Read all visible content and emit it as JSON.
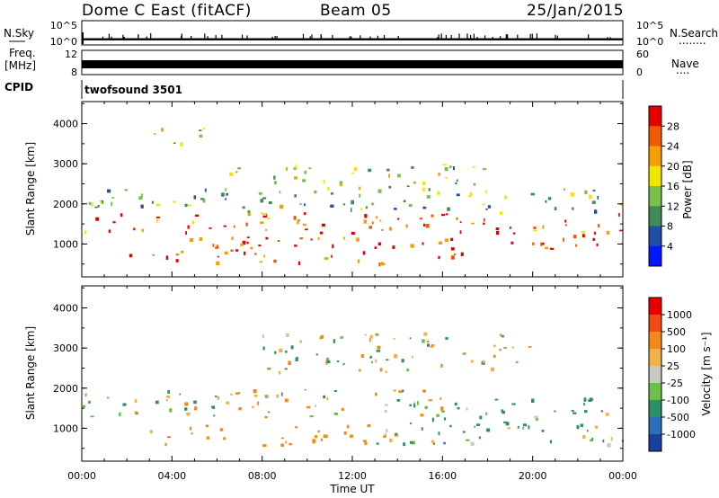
{
  "header": {
    "station": "Dome C East (fitACF)",
    "beam": "Beam 05",
    "date": "25/Jan/2015"
  },
  "nsky_panel": {
    "left_label": "N.Sky",
    "left_ticks": [
      "10^5",
      "10^0"
    ],
    "right_ticks": [
      "10^5",
      "10^0"
    ],
    "right_label": "N.Search",
    "right_label_dots": "........"
  },
  "freq_panel": {
    "left_label_line1": "Freq.",
    "left_label_line2": "[MHz]",
    "left_ticks": [
      "12",
      "8"
    ],
    "right_ticks": [
      "60",
      "0"
    ],
    "right_label": "Nave",
    "right_label_dots": "...."
  },
  "cpid_panel": {
    "label": "CPID",
    "value": "twofsound 3501"
  },
  "axes": {
    "x_ticks": [
      "00:00",
      "04:00",
      "08:00",
      "12:00",
      "16:00",
      "20:00",
      "00:00"
    ],
    "x_label": "Time UT",
    "y_ticks": [
      "1000",
      "2000",
      "3000",
      "4000"
    ],
    "y_label": "Slant Range [km]"
  },
  "power_colorbar": {
    "label": "Power [dB]",
    "ticks": [
      "4",
      "8",
      "12",
      "16",
      "20",
      "24",
      "28"
    ],
    "colors": [
      "#0018ff",
      "#1f4ea6",
      "#3f8c5a",
      "#7bc04a",
      "#f2e600",
      "#f3a000",
      "#f25a00",
      "#e80000"
    ]
  },
  "velocity_colorbar": {
    "label": "Velocity [m s⁻¹]",
    "ticks": [
      "1000",
      "500",
      "100",
      "25",
      "-25",
      "-100",
      "-500",
      "-1000"
    ],
    "colors": [
      "#1a3fa0",
      "#2f6fb8",
      "#2f8f68",
      "#6cc04a",
      "#c9c9c4",
      "#f2b24a",
      "#f28a1a",
      "#f24a10",
      "#e80000"
    ]
  },
  "chart_data": [
    {
      "type": "heatmap",
      "title": "",
      "x": [
        "00:00",
        "04:00",
        "08:00",
        "12:00",
        "16:00",
        "20:00",
        "00:00"
      ],
      "xlabel": "Time UT",
      "ylabel": "Slant Range [km]",
      "ylim": [
        180,
        4550
      ],
      "quantity": "Power [dB]",
      "colorbar_range": [
        0,
        30
      ],
      "grid": false,
      "legend": "right colorbar",
      "echo_bands": [
        {
          "range_km": [
            1300,
            1800
          ],
          "time_h": [
            0,
            24
          ],
          "power_db": 24
        },
        {
          "range_km": [
            500,
            1200
          ],
          "time_h": [
            2,
            17
          ],
          "power_db": 26
        },
        {
          "range_km": [
            900,
            1600
          ],
          "time_h": [
            19,
            23
          ],
          "power_db": 28
        },
        {
          "range_km": [
            1800,
            2400
          ],
          "time_h": [
            0,
            24
          ],
          "power_db": 12
        },
        {
          "range_km": [
            2400,
            3000
          ],
          "time_h": [
            6,
            18
          ],
          "power_db": 14
        },
        {
          "range_km": [
            3500,
            3900
          ],
          "time_h": [
            3,
            6
          ],
          "power_db": 14
        }
      ]
    },
    {
      "type": "heatmap",
      "title": "",
      "x": [
        "00:00",
        "04:00",
        "08:00",
        "12:00",
        "16:00",
        "20:00",
        "00:00"
      ],
      "xlabel": "Time UT",
      "ylabel": "Slant Range [km]",
      "ylim": [
        180,
        4550
      ],
      "quantity": "Velocity [m s-1]",
      "grid": false,
      "legend": "right colorbar",
      "echo_bands": [
        {
          "range_km": [
            1300,
            2000
          ],
          "time_h": [
            0,
            16
          ],
          "velocity_ms": 0
        },
        {
          "range_km": [
            600,
            1100
          ],
          "time_h": [
            3,
            14
          ],
          "velocity_ms": -300
        },
        {
          "range_km": [
            600,
            1800
          ],
          "time_h": [
            13,
            24
          ],
          "velocity_ms": 150
        },
        {
          "range_km": [
            2400,
            3400
          ],
          "time_h": [
            8,
            20
          ],
          "velocity_ms": 0
        }
      ]
    },
    {
      "type": "line",
      "title": "",
      "series_label": "N.Sky",
      "x": [
        "00:00",
        "04:00",
        "08:00",
        "12:00",
        "16:00",
        "20:00",
        "00:00"
      ],
      "y_scale": "log",
      "ylim": [
        1,
        100000
      ],
      "baseline": 20,
      "grid": false
    }
  ]
}
